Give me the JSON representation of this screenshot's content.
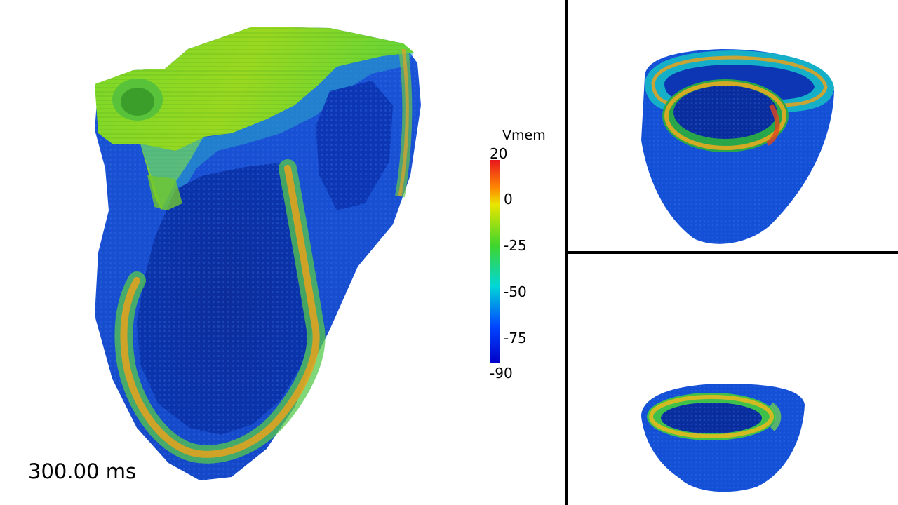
{
  "scalar_bar": {
    "title": "Vmem",
    "max_label": "20",
    "min_label": "-90",
    "ticks": [
      "0",
      "-25",
      "-50",
      "-75"
    ],
    "colors": {
      "red": "#e8161e",
      "orange": "#ff8a00",
      "yellow": "#e9e600",
      "green": "#3fd62c",
      "cyan": "#00d7d7",
      "blue": "#0045ff",
      "dark_blue": "#0000c8"
    }
  },
  "time_label": "300.00 ms",
  "views": {
    "main": "heart-longitudinal-section",
    "top_right": "heart-basal-slice",
    "bottom_right": "heart-apical-slice"
  }
}
